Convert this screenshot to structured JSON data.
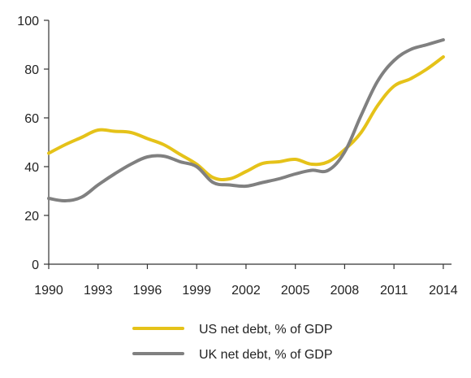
{
  "chart_data": {
    "type": "line",
    "x": [
      1990,
      1991,
      1992,
      1993,
      1994,
      1995,
      1996,
      1997,
      1998,
      1999,
      2000,
      2001,
      2002,
      2003,
      2004,
      2005,
      2006,
      2007,
      2008,
      2009,
      2010,
      2011,
      2012,
      2013,
      2014
    ],
    "xticks": [
      1990,
      1993,
      1996,
      1999,
      2002,
      2005,
      2008,
      2011,
      2014
    ],
    "xlim": [
      1990,
      2014.5
    ],
    "yticks": [
      0,
      20,
      40,
      60,
      80,
      100
    ],
    "ylim": [
      0,
      100
    ],
    "grid": false,
    "legend": "bottom-center",
    "series": [
      {
        "name": "US net debt, % of GDP",
        "color": "#E5C219",
        "values": [
          45.5,
          49,
          52,
          55,
          54.5,
          54,
          51.5,
          49,
          45,
          41,
          35.5,
          35,
          38,
          41.3,
          42,
          43,
          41,
          42,
          47,
          54,
          65,
          73,
          76,
          80,
          85
        ]
      },
      {
        "name": "UK net debt, % of GDP",
        "color": "#808080",
        "values": [
          27,
          26,
          27.5,
          32.5,
          37,
          41,
          44,
          44.3,
          42,
          40,
          33.5,
          32.5,
          32,
          33.5,
          35,
          37,
          38.5,
          38.5,
          46,
          61,
          75,
          83.5,
          88,
          90,
          92
        ]
      }
    ]
  }
}
